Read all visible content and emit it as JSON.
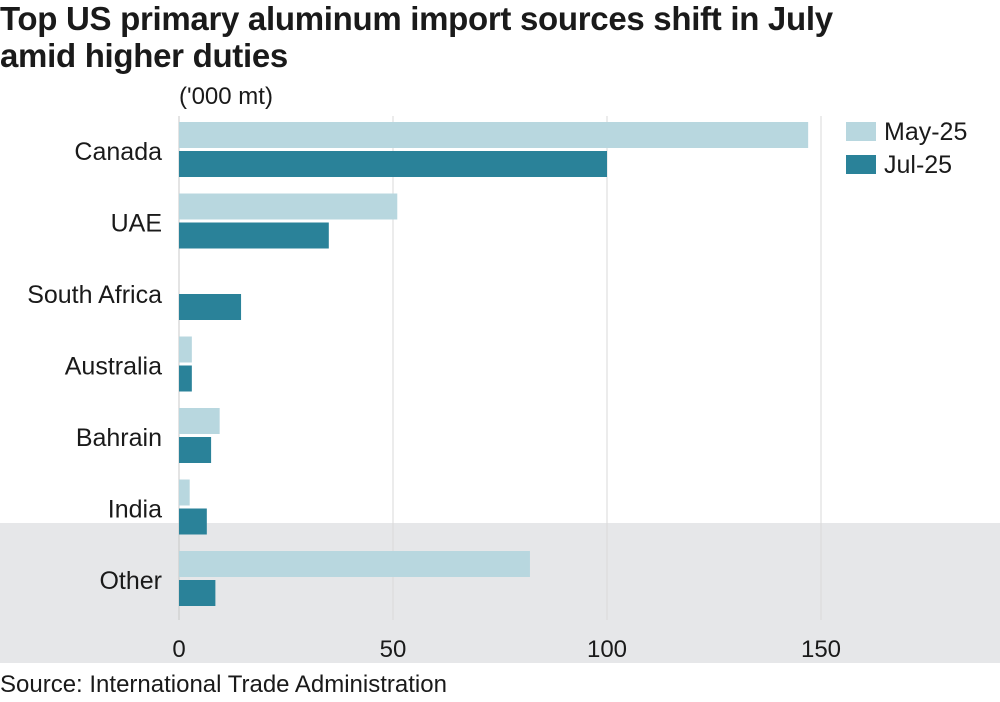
{
  "title_line1": "Top US primary aluminum import sources shift in July",
  "title_line2": "amid higher duties",
  "source": "Source: International Trade Administration",
  "colors": {
    "may": "#b8d7df",
    "jul": "#2a8299",
    "other_band": "#e6e7e9",
    "grid": "#d9d9d9"
  },
  "chart_data": {
    "type": "bar",
    "orientation": "horizontal",
    "title": "Top US primary aluminum import sources shift in July amid higher duties",
    "unit_label": "('000 mt)",
    "categories": [
      "Canada",
      "UAE",
      "South Africa",
      "Australia",
      "Bahrain",
      "India",
      "Other"
    ],
    "series": [
      {
        "name": "May-25",
        "values": [
          147,
          51,
          0,
          3,
          9.5,
          2.5,
          82
        ]
      },
      {
        "name": "Jul-25",
        "values": [
          100,
          35,
          14.5,
          3,
          7.5,
          6.5,
          8.5
        ]
      }
    ],
    "xlim": [
      0,
      190
    ],
    "xticks": [
      0,
      50,
      100,
      150
    ],
    "legend_position": "top-right",
    "grid": "vertical"
  }
}
